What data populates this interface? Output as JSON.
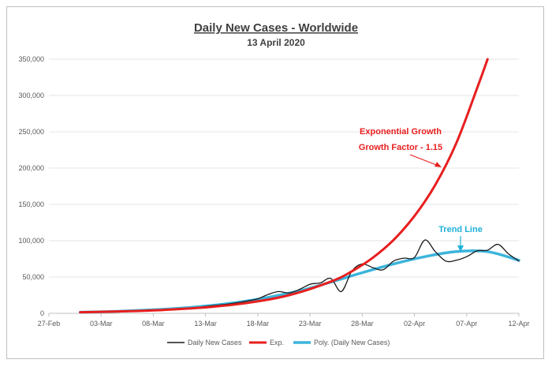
{
  "chart_data": {
    "type": "line",
    "title": "Daily New Cases - Worldwide",
    "subtitle": "13 April 2020",
    "xlabel": "",
    "ylabel": "",
    "x_ticks": [
      "27-Feb",
      "03-Mar",
      "08-Mar",
      "13-Mar",
      "18-Mar",
      "23-Mar",
      "28-Mar",
      "02-Apr",
      "07-Apr",
      "12-Apr"
    ],
    "y_ticks": [
      "0",
      "50,000",
      "100,000",
      "150,000",
      "200,000",
      "250,000",
      "300,000",
      "350,000"
    ],
    "xlim": [
      "2020-02-27",
      "2020-04-12"
    ],
    "ylim": [
      0,
      350000
    ],
    "grid": "horizontal",
    "legend_position": "bottom",
    "series": [
      {
        "name": "Daily New Cases",
        "color": "#1a1a1a",
        "x": [
          "2020-03-01",
          "2020-03-02",
          "2020-03-03",
          "2020-03-04",
          "2020-03-05",
          "2020-03-06",
          "2020-03-07",
          "2020-03-08",
          "2020-03-09",
          "2020-03-10",
          "2020-03-11",
          "2020-03-12",
          "2020-03-13",
          "2020-03-14",
          "2020-03-15",
          "2020-03-16",
          "2020-03-17",
          "2020-03-18",
          "2020-03-19",
          "2020-03-20",
          "2020-03-21",
          "2020-03-22",
          "2020-03-23",
          "2020-03-24",
          "2020-03-25",
          "2020-03-26",
          "2020-03-27",
          "2020-03-28",
          "2020-03-29",
          "2020-03-30",
          "2020-03-31",
          "2020-04-01",
          "2020-04-02",
          "2020-04-03",
          "2020-04-04",
          "2020-04-05",
          "2020-04-06",
          "2020-04-07",
          "2020-04-08",
          "2020-04-09",
          "2020-04-10",
          "2020-04-11",
          "2020-04-12"
        ],
        "values": [
          1800,
          1900,
          2200,
          2300,
          2600,
          3000,
          3500,
          4000,
          4500,
          5000,
          6500,
          7500,
          9500,
          11000,
          12500,
          14500,
          17000,
          20000,
          26000,
          30000,
          28000,
          33000,
          40000,
          42000,
          48000,
          30000,
          58000,
          68000,
          63000,
          60000,
          72000,
          76000,
          77000,
          101000,
          85000,
          72000,
          73000,
          78000,
          86000,
          87000,
          95000,
          82000,
          72000
        ]
      },
      {
        "name": "Exp.",
        "color": "#e81e1e",
        "model": "exponential",
        "growth_factor": 1.15,
        "x": [
          "2020-03-01",
          "2020-03-05",
          "2020-03-09",
          "2020-03-13",
          "2020-03-17",
          "2020-03-21",
          "2020-03-25",
          "2020-03-27",
          "2020-03-29",
          "2020-03-31",
          "2020-04-02",
          "2020-04-04",
          "2020-04-06",
          "2020-04-08",
          "2020-04-09"
        ],
        "values": [
          1500,
          2700,
          4700,
          8200,
          14300,
          25000,
          43700,
          57800,
          76400,
          101000,
          134000,
          177000,
          234000,
          310000,
          350000
        ]
      },
      {
        "name": "Poly. (Daily New Cases)",
        "color": "#3cb4dc",
        "model": "polynomial",
        "x": [
          "2020-03-01",
          "2020-03-04",
          "2020-03-07",
          "2020-03-10",
          "2020-03-13",
          "2020-03-16",
          "2020-03-19",
          "2020-03-22",
          "2020-03-25",
          "2020-03-28",
          "2020-03-31",
          "2020-04-03",
          "2020-04-06",
          "2020-04-09",
          "2020-04-12"
        ],
        "values": [
          1500,
          2500,
          4200,
          6500,
          10000,
          15000,
          22000,
          31000,
          43000,
          56000,
          68000,
          78000,
          85000,
          85000,
          73000
        ]
      }
    ],
    "annotations": [
      {
        "text": "Exponential Growth",
        "color": "#e81e1e"
      },
      {
        "text": "Growth Factor - 1.15",
        "color": "#e81e1e"
      },
      {
        "text": "Trend Line",
        "color": "#1fb0d8"
      }
    ]
  }
}
